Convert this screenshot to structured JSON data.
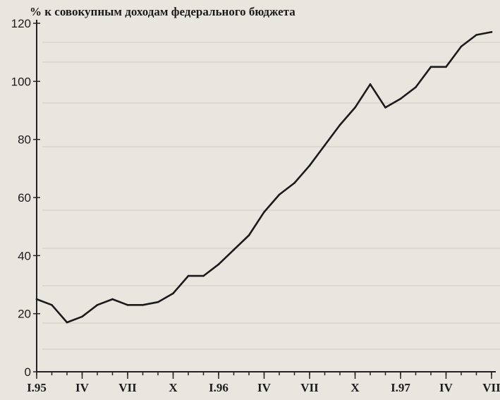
{
  "chart_data": {
    "type": "line",
    "title": "% к совокупным доходам федерального бюджета",
    "xlabel": "",
    "ylabel": "",
    "ylim": [
      0,
      120
    ],
    "yticks": [
      0,
      20,
      40,
      60,
      80,
      100,
      120
    ],
    "x_tick_labels": [
      {
        "label": "I.95",
        "index": 0
      },
      {
        "label": "IV",
        "index": 3
      },
      {
        "label": "VII",
        "index": 6
      },
      {
        "label": "X",
        "index": 9
      },
      {
        "label": "I.96",
        "index": 12
      },
      {
        "label": "IV",
        "index": 15
      },
      {
        "label": "VII",
        "index": 18
      },
      {
        "label": "X",
        "index": 21
      },
      {
        "label": "I.97",
        "index": 24
      },
      {
        "label": "IV",
        "index": 27
      },
      {
        "label": "VII",
        "index": 30
      }
    ],
    "x_count": 31,
    "grid": false,
    "series": [
      {
        "values": [
          25,
          23,
          17,
          19,
          23,
          25,
          23,
          23,
          24,
          27,
          33,
          33,
          37,
          42,
          47,
          55,
          61,
          65,
          71,
          78,
          85,
          91,
          99,
          91,
          94,
          98,
          105,
          105,
          112,
          116,
          117
        ]
      }
    ]
  }
}
